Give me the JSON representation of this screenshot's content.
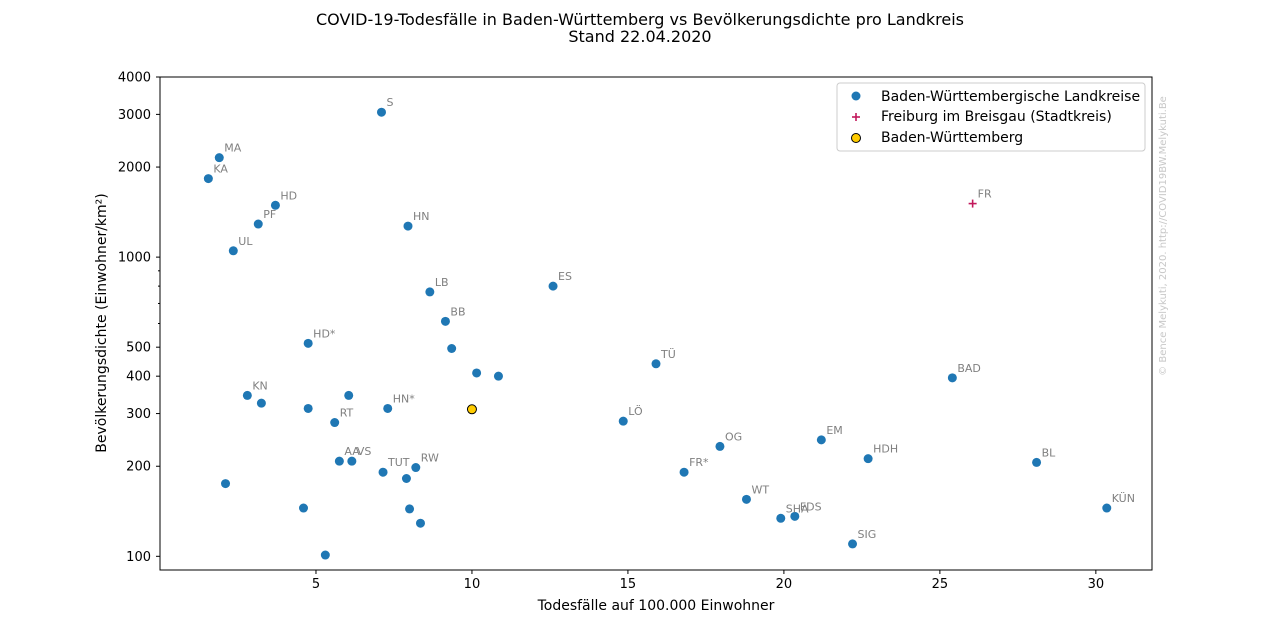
{
  "chart_data": {
    "type": "scatter",
    "title": "COVID-19-Todesfälle in Baden-Württemberg vs Bevölkerungsdichte pro Landkreis",
    "subtitle": "Stand 22.04.2020",
    "xlabel": "Todesfälle auf 100.000 Einwohner",
    "ylabel": "Bevölkerungsdichte (Einwohner/km²)",
    "x_ticks": [
      "5",
      "10",
      "15",
      "20",
      "25",
      "30"
    ],
    "y_ticks": [
      "100",
      "200",
      "300",
      "400",
      "500",
      "1000",
      "2000",
      "3000",
      "4000"
    ],
    "xlim": [
      0,
      31.8
    ],
    "ylim": [
      90,
      4000
    ],
    "y_scale": "log",
    "legend_position": "top-right",
    "watermark": "© Bence Melykuti, 2020. http://COVID19BW.Melykuti.Be",
    "colors": {
      "landkreise": "#1f77b4",
      "freiburg": "#c2185b",
      "bw": "#ffcc00"
    },
    "series": [
      {
        "name": "Baden-Württembergische Landkreise",
        "marker": "circle",
        "points": [
          {
            "x": 7.1,
            "y": 3050,
            "label": "S"
          },
          {
            "x": 1.9,
            "y": 2150,
            "label": "MA"
          },
          {
            "x": 1.55,
            "y": 1830,
            "label": "KA"
          },
          {
            "x": 3.7,
            "y": 1490,
            "label": "HD"
          },
          {
            "x": 3.15,
            "y": 1290,
            "label": "PF"
          },
          {
            "x": 7.95,
            "y": 1270,
            "label": "HN"
          },
          {
            "x": 2.35,
            "y": 1050,
            "label": "UL"
          },
          {
            "x": 12.6,
            "y": 800,
            "label": "ES"
          },
          {
            "x": 8.65,
            "y": 765,
            "label": "LB"
          },
          {
            "x": 9.15,
            "y": 610,
            "label": "BB"
          },
          {
            "x": 4.75,
            "y": 515,
            "label": "HD*"
          },
          {
            "x": 9.35,
            "y": 495,
            "label": ""
          },
          {
            "x": 15.9,
            "y": 440,
            "label": "TÜ"
          },
          {
            "x": 10.15,
            "y": 410,
            "label": ""
          },
          {
            "x": 10.85,
            "y": 400,
            "label": ""
          },
          {
            "x": 25.4,
            "y": 395,
            "label": "BAD"
          },
          {
            "x": 6.05,
            "y": 345,
            "label": ""
          },
          {
            "x": 2.8,
            "y": 345,
            "label": "KN"
          },
          {
            "x": 3.25,
            "y": 325,
            "label": ""
          },
          {
            "x": 4.75,
            "y": 312,
            "label": ""
          },
          {
            "x": 7.3,
            "y": 312,
            "label": "HN*"
          },
          {
            "x": 14.85,
            "y": 283,
            "label": "LÖ"
          },
          {
            "x": 5.6,
            "y": 280,
            "label": "RT"
          },
          {
            "x": 21.2,
            "y": 245,
            "label": "EM"
          },
          {
            "x": 17.95,
            "y": 233,
            "label": "OG"
          },
          {
            "x": 22.7,
            "y": 212,
            "label": "HDH"
          },
          {
            "x": 5.75,
            "y": 208,
            "label": "AA"
          },
          {
            "x": 6.15,
            "y": 208,
            "label": "VS"
          },
          {
            "x": 28.1,
            "y": 206,
            "label": "BL"
          },
          {
            "x": 8.2,
            "y": 198,
            "label": "RW"
          },
          {
            "x": 7.15,
            "y": 191,
            "label": "TUT"
          },
          {
            "x": 16.8,
            "y": 191,
            "label": "FR*"
          },
          {
            "x": 7.9,
            "y": 182,
            "label": ""
          },
          {
            "x": 2.1,
            "y": 175,
            "label": ""
          },
          {
            "x": 18.8,
            "y": 155,
            "label": "WT"
          },
          {
            "x": 4.6,
            "y": 145,
            "label": ""
          },
          {
            "x": 8.0,
            "y": 144,
            "label": ""
          },
          {
            "x": 30.35,
            "y": 145,
            "label": "KÜN"
          },
          {
            "x": 20.35,
            "y": 136,
            "label": "FDS"
          },
          {
            "x": 19.9,
            "y": 134,
            "label": "SHA"
          },
          {
            "x": 8.35,
            "y": 129,
            "label": ""
          },
          {
            "x": 22.2,
            "y": 110,
            "label": "SIG"
          },
          {
            "x": 5.3,
            "y": 101,
            "label": ""
          }
        ]
      },
      {
        "name": "Freiburg im Breisgau (Stadtkreis)",
        "marker": "plus",
        "points": [
          {
            "x": 26.05,
            "y": 1510,
            "label": "FR"
          }
        ]
      },
      {
        "name": "Baden-Württemberg",
        "marker": "circle-outline",
        "points": [
          {
            "x": 10.0,
            "y": 310,
            "label": ""
          }
        ]
      }
    ]
  }
}
